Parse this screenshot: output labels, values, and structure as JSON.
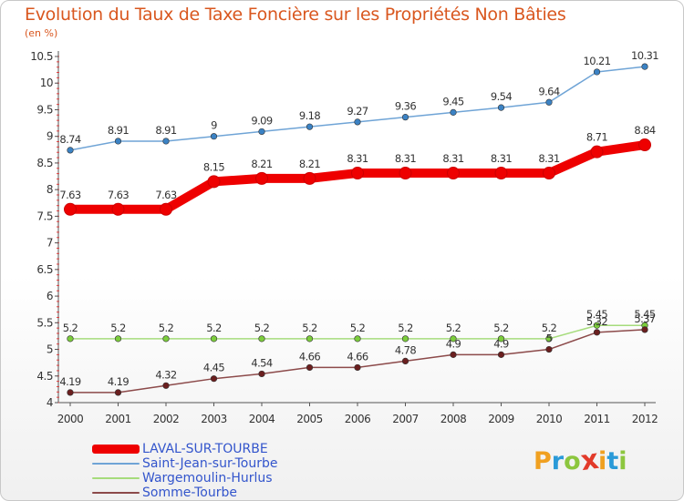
{
  "header": {
    "title": "Evolution du Taux de Taxe Foncière sur les Propriétés Non Bâties",
    "subtitle": "(en %)"
  },
  "brand": {
    "letters": [
      "P",
      "r",
      "o",
      "x",
      "i",
      "t",
      "i"
    ],
    "colors": [
      "#f0a020",
      "#2a9ad8",
      "#8cc63e",
      "#e23a2a",
      "#f0a020",
      "#2a9ad8",
      "#8cc63e"
    ]
  },
  "chart_data": {
    "type": "line",
    "title": "Evolution du Taux de Taxe Foncière sur les Propriétés Non Bâties",
    "ylabel": "(en %)",
    "xlabel": "",
    "x": [
      "2000",
      "2001",
      "2002",
      "2003",
      "2004",
      "2005",
      "2006",
      "2007",
      "2008",
      "2009",
      "2010",
      "2011",
      "2012"
    ],
    "ylim": [
      4,
      10.5
    ],
    "yticks": [
      "4",
      "4.5",
      "5",
      "5.5",
      "6",
      "6.5",
      "7",
      "7.5",
      "8",
      "8.5",
      "9",
      "9.5",
      "10",
      "10.5"
    ],
    "grid": false,
    "legend_position": "bottom-left",
    "series": [
      {
        "name": "LAVAL-SUR-TOURBE",
        "color": "#ee0000",
        "thick": true,
        "values": [
          7.63,
          7.63,
          7.63,
          8.15,
          8.21,
          8.21,
          8.31,
          8.31,
          8.31,
          8.31,
          8.31,
          8.71,
          8.84
        ],
        "labels": [
          "7.63",
          "7.63",
          "7.63",
          "8.15",
          "8.21",
          "8.21",
          "8.31",
          "8.31",
          "8.31",
          "8.31",
          "8.31",
          "8.71",
          "8.84"
        ]
      },
      {
        "name": "Saint-Jean-sur-Tourbe",
        "color": "#6fa4d6",
        "marker": "#3b82c4",
        "thick": false,
        "values": [
          8.74,
          8.91,
          8.91,
          9.0,
          9.09,
          9.18,
          9.27,
          9.36,
          9.45,
          9.54,
          9.64,
          10.21,
          10.31
        ],
        "labels": [
          "8.74",
          "8.91",
          "8.91",
          "9",
          "9.09",
          "9.18",
          "9.27",
          "9.36",
          "9.45",
          "9.54",
          "9.64",
          "10.21",
          "10.31"
        ]
      },
      {
        "name": "Wargemoulin-Hurlus",
        "color": "#a6dc7c",
        "marker": "#7ccd3c",
        "thick": false,
        "values": [
          5.2,
          5.2,
          5.2,
          5.2,
          5.2,
          5.2,
          5.2,
          5.2,
          5.2,
          5.2,
          5.2,
          5.45,
          5.45
        ],
        "labels": [
          "5.2",
          "5.2",
          "5.2",
          "5.2",
          "5.2",
          "5.2",
          "5.2",
          "5.2",
          "5.2",
          "5.2",
          "5.2",
          "5.45",
          "5.45"
        ]
      },
      {
        "name": "Somme-Tourbe",
        "color": "#8c4a4a",
        "marker": "#6b1f1f",
        "thick": false,
        "values": [
          4.19,
          4.19,
          4.32,
          4.45,
          4.54,
          4.66,
          4.66,
          4.78,
          4.9,
          4.9,
          5.0,
          5.32,
          5.37
        ],
        "labels": [
          "4.19",
          "4.19",
          "4.32",
          "4.45",
          "4.54",
          "4.66",
          "4.66",
          "4.78",
          "4.9",
          "4.9",
          "5",
          "5.32",
          "5.37"
        ]
      }
    ]
  }
}
